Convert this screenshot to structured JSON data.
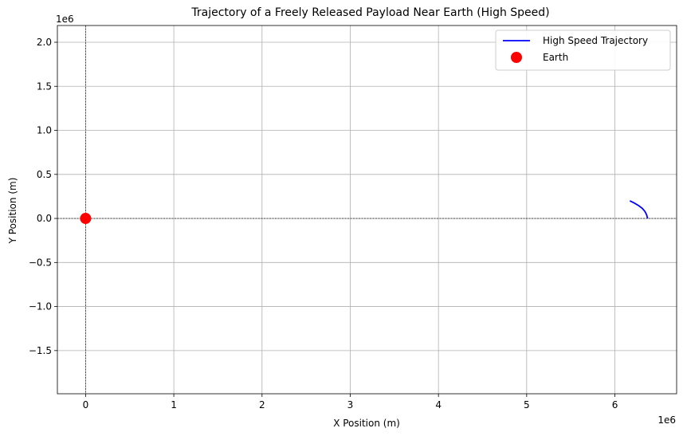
{
  "chart_data": {
    "type": "line",
    "title": "Trajectory of a Freely Released Payload Near Earth (High Speed)",
    "xlabel": "X Position (m)",
    "ylabel": "Y Position (m)",
    "x_offset_label": "1e6",
    "y_offset_label": "1e6",
    "xlim": [
      -0.32,
      6.7
    ],
    "ylim": [
      -1.99,
      2.19
    ],
    "x_scale_factor": 1000000,
    "y_scale_factor": 1000000,
    "grid": true,
    "legend_position": "top-right",
    "x_ticks": [
      {
        "value": 0,
        "label": "0"
      },
      {
        "value": 1,
        "label": "1"
      },
      {
        "value": 2,
        "label": "2"
      },
      {
        "value": 3,
        "label": "3"
      },
      {
        "value": 4,
        "label": "4"
      },
      {
        "value": 5,
        "label": "5"
      },
      {
        "value": 6,
        "label": "6"
      }
    ],
    "y_ticks": [
      {
        "value": 2.0,
        "label": "2.0"
      },
      {
        "value": 1.5,
        "label": "1.5"
      },
      {
        "value": 1.0,
        "label": "1.0"
      },
      {
        "value": 0.5,
        "label": "0.5"
      },
      {
        "value": 0.0,
        "label": "0.0"
      },
      {
        "value": -0.5,
        "label": "−0.5"
      },
      {
        "value": -1.0,
        "label": "−1.0"
      },
      {
        "value": -1.5,
        "label": "−1.5"
      }
    ],
    "reference_lines": [
      {
        "axis": "x",
        "value": 0,
        "style": "dashed",
        "color": "#000000"
      },
      {
        "axis": "y",
        "value": 0,
        "style": "dashed",
        "color": "#000000"
      }
    ],
    "series": [
      {
        "name": "High Speed Trajectory",
        "kind": "line",
        "color": "#0000ff",
        "x": [
          6.371,
          6.36,
          6.34,
          6.31,
          6.27,
          6.22,
          6.17
        ],
        "y": [
          0.0,
          0.04,
          0.08,
          0.115,
          0.145,
          0.175,
          0.2
        ]
      },
      {
        "name": "Earth",
        "kind": "marker",
        "color": "#ff0000",
        "x": [
          0
        ],
        "y": [
          0
        ]
      }
    ]
  }
}
